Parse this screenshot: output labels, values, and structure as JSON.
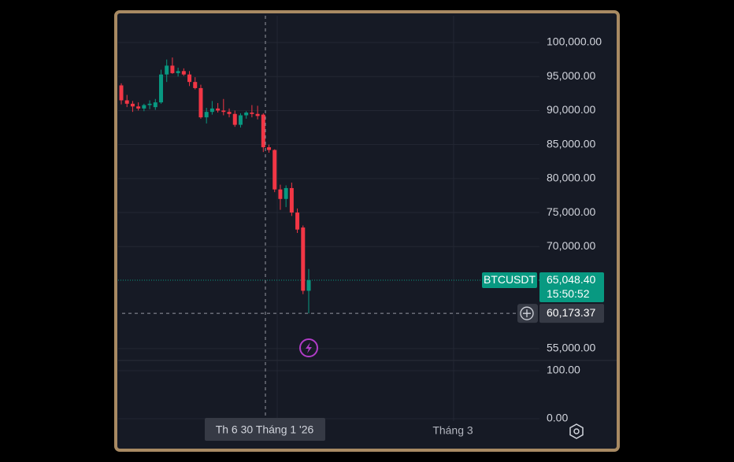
{
  "chart_data": {
    "type": "candlestick",
    "symbol": "BTCUSDT",
    "up_color": "#089981",
    "down_color": "#f23645",
    "candles": [
      [
        93700,
        94000,
        90900,
        91500
      ],
      [
        91500,
        92300,
        90500,
        91000
      ],
      [
        91000,
        91400,
        89800,
        90600
      ],
      [
        90600,
        91200,
        90000,
        90300
      ],
      [
        90300,
        91000,
        89900,
        90800
      ],
      [
        90800,
        91500,
        90200,
        91000
      ],
      [
        90500,
        91700,
        90100,
        91200
      ],
      [
        91200,
        96000,
        91000,
        95300
      ],
      [
        95300,
        97500,
        94200,
        96600
      ],
      [
        96600,
        97800,
        95400,
        95500
      ],
      [
        95500,
        96300,
        95000,
        95800
      ],
      [
        95800,
        96200,
        95100,
        95300
      ],
      [
        95300,
        95800,
        93600,
        94200
      ],
      [
        94200,
        94900,
        93100,
        93300
      ],
      [
        93300,
        93800,
        88800,
        89000
      ],
      [
        89000,
        90400,
        88100,
        89800
      ],
      [
        89800,
        91400,
        89400,
        90300
      ],
      [
        90300,
        91100,
        89700,
        90000
      ],
      [
        90000,
        91700,
        89300,
        89800
      ],
      [
        89800,
        90300,
        89000,
        89500
      ],
      [
        89500,
        90000,
        87600,
        87900
      ],
      [
        87900,
        89600,
        87500,
        89300
      ],
      [
        89300,
        89900,
        88800,
        89700
      ],
      [
        89700,
        90800,
        89000,
        89500
      ],
      [
        89500,
        90700,
        88700,
        89200
      ],
      [
        89400,
        89600,
        83900,
        84600
      ],
      [
        84600,
        85000,
        83800,
        84200
      ],
      [
        84200,
        84300,
        78000,
        78400
      ],
      [
        78400,
        79100,
        75400,
        77000
      ],
      [
        77000,
        79000,
        75800,
        78600
      ],
      [
        78600,
        79400,
        74500,
        75000
      ],
      [
        75000,
        75600,
        72000,
        72500
      ],
      [
        72800,
        73100,
        63000,
        63500
      ],
      [
        63500,
        66700,
        60173.37,
        65048.4
      ]
    ],
    "ylim": [
      53250,
      104170
    ],
    "yticks": [
      {
        "value": 55000,
        "label": "55,000.00"
      },
      {
        "value": 70000,
        "label": "70,000.00"
      },
      {
        "value": 75000,
        "label": "75,000.00"
      },
      {
        "value": 80000,
        "label": "80,000.00"
      },
      {
        "value": 85000,
        "label": "85,000.00"
      },
      {
        "value": 90000,
        "label": "90,000.00"
      },
      {
        "value": 95000,
        "label": "95,000.00"
      },
      {
        "value": 100000,
        "label": "100,000.00"
      }
    ],
    "last_price": {
      "value": 65048.4,
      "label": "65,048.40"
    },
    "countdown": "15:50:52",
    "crosshair_price": {
      "value": 60173.37,
      "label": "60,173.37"
    },
    "crosshair_date": "Th 6 30 Tháng 1 '26",
    "x_axis_label": "Tháng 3",
    "volume_ylim": [
      -5,
      118
    ],
    "volume_ticks": [
      {
        "value": 100,
        "label": "100.00"
      },
      {
        "value": 0,
        "label": "0.00"
      }
    ]
  }
}
